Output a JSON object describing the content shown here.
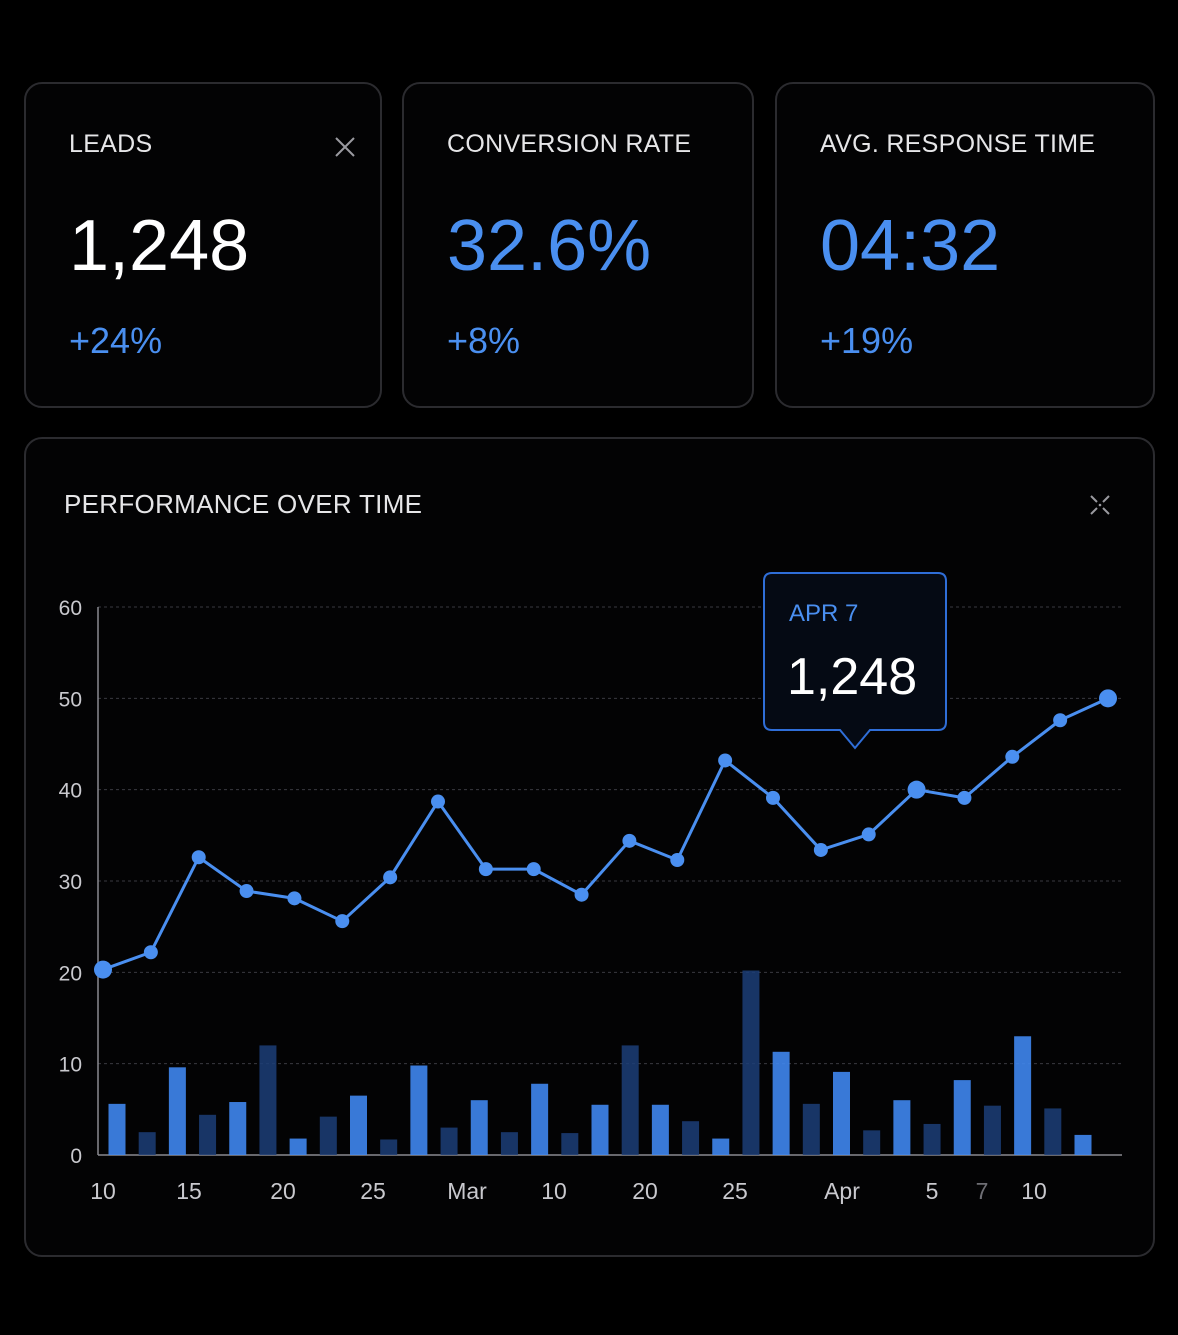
{
  "kpis": [
    {
      "label": "LEADS",
      "value": "1,248",
      "delta": "+24%",
      "value_color": "#ffffff"
    },
    {
      "label": "CONVERSION RATE",
      "value": "32.6%",
      "delta": "+8%",
      "value_color": "#4a8ff0"
    },
    {
      "label": "AVG. RESPONSE TIME",
      "value": "04:32",
      "delta": "+19%",
      "value_color": "#4a8ff0"
    }
  ],
  "performance": {
    "title": "PERFORMANCE OVER TIME"
  },
  "chart_data": {
    "type": "line",
    "title": "PERFORMANCE OVER TIME",
    "ylim": [
      0,
      60
    ],
    "y_ticks": [
      "60",
      "50",
      "40",
      "30",
      "20",
      "10",
      "0"
    ],
    "x_tick_labels": [
      "10",
      "15",
      "20",
      "25",
      "Mar",
      "10",
      "20",
      "25",
      "Apr",
      "5",
      "7",
      "10"
    ],
    "grid": true,
    "series": [
      {
        "type": "line",
        "values": [
          20.3,
          22.2,
          32.6,
          28.9,
          28.1,
          25.6,
          30.4,
          38.7,
          31.3,
          31.3,
          28.5,
          34.4,
          32.3,
          43.2,
          39.1,
          33.4,
          35.1,
          40.0,
          39.1,
          43.6,
          47.6,
          50.0
        ]
      },
      {
        "type": "bar",
        "values": [
          5.6,
          2.5,
          9.6,
          4.4,
          5.8,
          12.0,
          1.8,
          4.2,
          6.5,
          1.7,
          9.8,
          3.0,
          6.0,
          2.5,
          7.8,
          2.4,
          5.5,
          12.0,
          5.5,
          3.7,
          1.8,
          20.2,
          11.3,
          5.6,
          9.1,
          2.7,
          6.0,
          3.4,
          8.2,
          5.4,
          13.0,
          5.1,
          2.2
        ]
      }
    ],
    "tooltip": {
      "date": "APR 7",
      "value": "1,248"
    },
    "colors": {
      "line": "#4a8ff0",
      "bar_bright": "#3f86ee",
      "bar_dim": "#1c3e78",
      "tooltip_border": "#2f6ed8"
    }
  }
}
